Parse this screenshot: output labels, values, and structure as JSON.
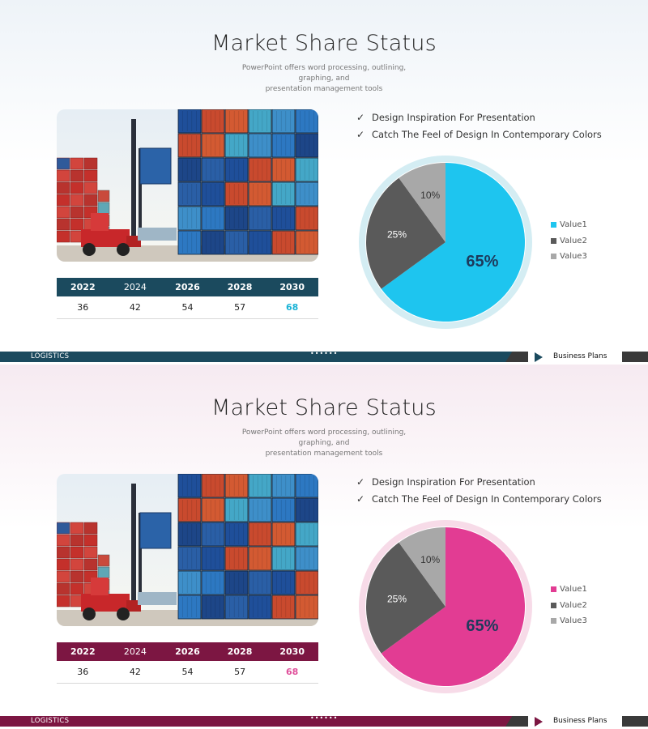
{
  "slides": [
    {
      "theme": {
        "accent": "#1b4a5e",
        "pie_main": "#1ec5ef",
        "ring": "#d4edf3",
        "highlight": "#1ab3d6"
      },
      "title": "Market Share Status",
      "subtitle_line1": "PowerPoint offers word processing, outlining, graphing, and",
      "subtitle_line2": "presentation management  tools",
      "bullets": [
        "Design Inspiration For Presentation",
        "Catch The Feel of Design In Contemporary Colors"
      ],
      "table": {
        "years": [
          "2022",
          "2024",
          "2026",
          "2028",
          "2030"
        ],
        "values": [
          "36",
          "42",
          "54",
          "57",
          "68"
        ]
      },
      "footer": {
        "left": "LOGISTICS",
        "dots": "••••••",
        "right": "Business Plans"
      }
    },
    {
      "theme": {
        "accent": "#7c1642",
        "pie_main": "#e23c93",
        "ring": "#f7dbe8",
        "highlight": "#e0509b"
      },
      "title": "Market Share Status",
      "subtitle_line1": "PowerPoint offers word processing, outlining, graphing, and",
      "subtitle_line2": "presentation management  tools",
      "bullets": [
        "Design Inspiration For Presentation",
        "Catch The Feel of Design In Contemporary Colors"
      ],
      "table": {
        "years": [
          "2022",
          "2024",
          "2026",
          "2028",
          "2030"
        ],
        "values": [
          "36",
          "42",
          "54",
          "57",
          "68"
        ]
      },
      "footer": {
        "left": "LOGISTICS",
        "dots": "••••••",
        "right": "Business Plans"
      }
    }
  ],
  "chart_data": [
    {
      "type": "pie",
      "categories": [
        "Value1",
        "Value2",
        "Value3"
      ],
      "values": [
        65,
        25,
        10
      ],
      "labels": [
        "65%",
        "25%",
        "10%"
      ],
      "colors": [
        "#1ec5ef",
        "#5a5a5a",
        "#a8a8a8"
      ],
      "legend": "right"
    },
    {
      "type": "pie",
      "categories": [
        "Value1",
        "Value2",
        "Value3"
      ],
      "values": [
        65,
        25,
        10
      ],
      "labels": [
        "65%",
        "25%",
        "10%"
      ],
      "colors": [
        "#e23c93",
        "#5a5a5a",
        "#a8a8a8"
      ],
      "legend": "right"
    }
  ]
}
